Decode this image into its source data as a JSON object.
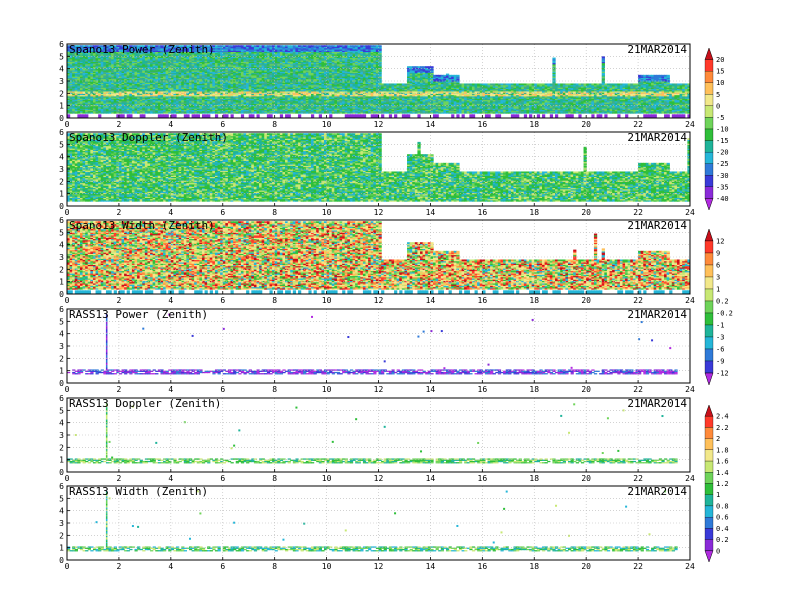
{
  "chart_data": [
    {
      "type": "heatmap",
      "title": "Spano13 Power (Zenith)",
      "date": "21MAR2014",
      "xlim": [
        0,
        24
      ],
      "ylim": [
        0,
        6
      ],
      "x_ticks": [
        "0",
        "2",
        "4",
        "6",
        "8",
        "10",
        "12",
        "14",
        "16",
        "18",
        "20",
        "22",
        "24"
      ],
      "y_ticks": [
        "0",
        "1",
        "2",
        "3",
        "4",
        "5",
        "6"
      ],
      "grid": true,
      "regimes": [
        {
          "t": [
            0,
            12
          ],
          "top_km": 5.8
        },
        {
          "t": [
            12,
            24
          ],
          "top_km": 2.8
        },
        {
          "t": [
            13,
            14
          ],
          "top_km": 4.2
        },
        {
          "t": [
            14,
            15
          ],
          "top_km": 3.5
        },
        {
          "t": [
            22,
            23.2
          ],
          "top_km": 3.5
        }
      ],
      "bright_band_km": 2.0,
      "colorbar": "power"
    },
    {
      "type": "heatmap",
      "title": "Spano13 Doppler (Zenith)",
      "date": "21MAR2014",
      "xlim": [
        0,
        24
      ],
      "ylim": [
        0,
        6
      ],
      "x_ticks": [
        "0",
        "2",
        "4",
        "6",
        "8",
        "10",
        "12",
        "14",
        "16",
        "18",
        "20",
        "22",
        "24"
      ],
      "y_ticks": [
        "0",
        "1",
        "2",
        "3",
        "4",
        "5",
        "6"
      ],
      "grid": true,
      "regimes": [
        {
          "t": [
            0,
            12
          ],
          "top_km": 5.8
        },
        {
          "t": [
            12,
            24
          ],
          "top_km": 2.8
        },
        {
          "t": [
            13,
            14
          ],
          "top_km": 4.2
        },
        {
          "t": [
            14,
            15
          ],
          "top_km": 3.5
        },
        {
          "t": [
            22,
            23.2
          ],
          "top_km": 3.5
        }
      ]
    },
    {
      "type": "heatmap",
      "title": "Spano13 Width (Zenith)",
      "date": "21MAR2014",
      "xlim": [
        0,
        24
      ],
      "ylim": [
        0,
        6
      ],
      "x_ticks": [
        "0",
        "2",
        "4",
        "6",
        "8",
        "10",
        "12",
        "14",
        "16",
        "18",
        "20",
        "22",
        "24"
      ],
      "y_ticks": [
        "0",
        "1",
        "2",
        "3",
        "4",
        "5",
        "6"
      ],
      "grid": true,
      "regimes": [
        {
          "t": [
            0,
            12
          ],
          "top_km": 5.8
        },
        {
          "t": [
            12,
            24
          ],
          "top_km": 2.8
        },
        {
          "t": [
            13,
            14
          ],
          "top_km": 4.2
        },
        {
          "t": [
            14,
            15
          ],
          "top_km": 3.5
        },
        {
          "t": [
            22,
            23.2
          ],
          "top_km": 3.5
        }
      ],
      "colorbar": "width"
    },
    {
      "type": "heatmap",
      "title": "RASS13 Power (Zenith)",
      "date": "21MAR2014",
      "xlim": [
        0,
        24
      ],
      "ylim": [
        0,
        6
      ],
      "x_ticks": [
        "0",
        "2",
        "4",
        "6",
        "8",
        "10",
        "12",
        "14",
        "16",
        "18",
        "20",
        "22",
        "24"
      ],
      "y_ticks": [
        "0",
        "1",
        "2",
        "3",
        "4",
        "5",
        "6"
      ],
      "grid": true,
      "layer_km": [
        0.7,
        1.0
      ],
      "spike_hour": 1.5
    },
    {
      "type": "heatmap",
      "title": "RASS13 Doppler (Zenith)",
      "date": "21MAR2014",
      "xlim": [
        0,
        24
      ],
      "ylim": [
        0,
        6
      ],
      "x_ticks": [
        "0",
        "2",
        "4",
        "6",
        "8",
        "10",
        "12",
        "14",
        "16",
        "18",
        "20",
        "22",
        "24"
      ],
      "y_ticks": [
        "0",
        "1",
        "2",
        "3",
        "4",
        "5",
        "6"
      ],
      "grid": true,
      "layer_km": [
        0.7,
        1.0
      ],
      "spike_hour": 1.5,
      "colorbar": "doppler"
    },
    {
      "type": "heatmap",
      "title": "RASS13 Width (Zenith)",
      "date": "21MAR2014",
      "xlim": [
        0,
        24
      ],
      "ylim": [
        0,
        6
      ],
      "x_ticks": [
        "0",
        "2",
        "4",
        "6",
        "8",
        "10",
        "12",
        "14",
        "16",
        "18",
        "20",
        "22",
        "24"
      ],
      "y_ticks": [
        "0",
        "1",
        "2",
        "3",
        "4",
        "5",
        "6"
      ],
      "grid": true,
      "layer_km": [
        0.7,
        1.0
      ],
      "spike_hour": 1.5
    }
  ],
  "colorbars": {
    "power": {
      "ticks": [
        "20",
        "15",
        "10",
        "5",
        "0",
        "-5",
        "-10",
        "-15",
        "-20",
        "-25",
        "-30",
        "-35",
        "-40"
      ],
      "colors": [
        "#c8101a",
        "#ff3a2a",
        "#ff8a3a",
        "#ffc05a",
        "#f2e88a",
        "#c8e874",
        "#6fd45a",
        "#2fbf3a",
        "#1fb49a",
        "#25b6d8",
        "#2f7ad8",
        "#3a3ad8",
        "#8a2ad8",
        "#b12ae0"
      ]
    },
    "width": {
      "ticks": [
        "12",
        "9",
        "6",
        "3",
        "1",
        "0.2",
        "-0.2",
        "-1",
        "-3",
        "-6",
        "-9",
        "-12"
      ],
      "colors": [
        "#c8101a",
        "#ff3a2a",
        "#ff8a3a",
        "#ffc05a",
        "#f2e88a",
        "#c8e874",
        "#6fd45a",
        "#2fbf3a",
        "#1fb49a",
        "#25b6d8",
        "#2f7ad8",
        "#3a3ad8",
        "#b12ae0"
      ]
    },
    "doppler": {
      "ticks": [
        "2.4",
        "2.2",
        "2",
        "1.8",
        "1.6",
        "1.4",
        "1.2",
        "1",
        "0.8",
        "0.6",
        "0.4",
        "0.2",
        "0"
      ],
      "colors": [
        "#c8101a",
        "#ff3a2a",
        "#ff8a3a",
        "#ffc05a",
        "#f2e88a",
        "#c8e874",
        "#6fd45a",
        "#2fbf3a",
        "#1fb49a",
        "#25b6d8",
        "#2f7ad8",
        "#3a3ad8",
        "#8a2ad8",
        "#b12ae0"
      ]
    }
  },
  "palette": {
    "power_bg": [
      "#1fb49a",
      "#25b6d8",
      "#2fbf3a",
      "#6fd45a",
      "#3fae8a"
    ],
    "power_band": [
      "#f2e88a",
      "#c8e874",
      "#ffc05a"
    ],
    "power_top": [
      "#2f7ad8",
      "#25b6d8",
      "#3a3ad8"
    ],
    "power_low": "#8a2ad8",
    "doppler": [
      "#2fbf3a",
      "#6fd45a",
      "#1fb49a",
      "#25b6d8",
      "#c8e874",
      "#2fbf3a"
    ],
    "width": [
      "#f2e88a",
      "#c8e874",
      "#6fd45a",
      "#ffc05a",
      "#2fbf3a",
      "#f2e88a",
      "#ff8a3a",
      "#ff3a2a",
      "#c8101a",
      "#25b6d8"
    ],
    "rass_power": [
      "#8a2ad8",
      "#3a3ad8",
      "#b12ae0",
      "#2f7ad8"
    ],
    "rass_doppler": [
      "#2fbf3a",
      "#6fd45a",
      "#c8e874",
      "#1fb49a"
    ],
    "rass_width": [
      "#2fbf3a",
      "#6fd45a",
      "#25b6d8",
      "#c8e874",
      "#1fb49a"
    ]
  }
}
